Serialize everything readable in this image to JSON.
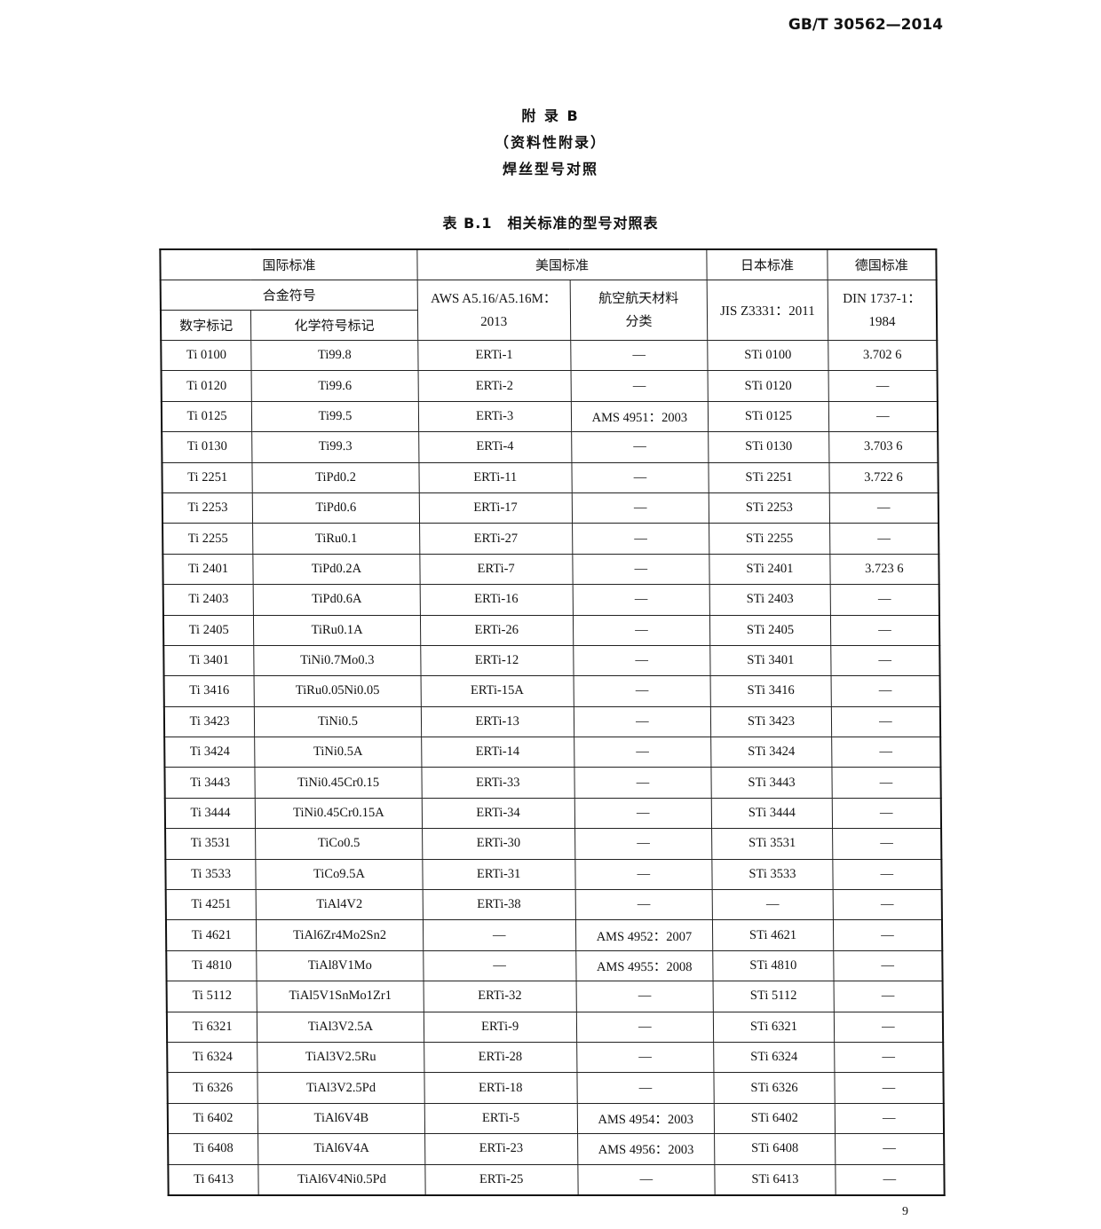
{
  "header": {
    "standard_no": "GB/T 30562—2014"
  },
  "title": {
    "appendix": "附 录 B",
    "type": "（资料性附录）",
    "subject": "焊丝型号对照",
    "table_caption": "表 B.1　相关标准的型号对照表"
  },
  "table": {
    "group_headers": {
      "international": "国际标准",
      "us": "美国标准",
      "japan": "日本标准",
      "germany": "德国标准"
    },
    "sub_headers": {
      "alloy_symbol": "合金符号",
      "aws": "AWS A5.16/A5.16M：2013",
      "aerospace": "航空航天材料分类",
      "jis": "JIS Z3331：2011",
      "din": "DIN 1737-1：1984",
      "numeric": "数字标记",
      "chemical": "化学符号标记"
    },
    "rows": [
      [
        "Ti 0100",
        "Ti99.8",
        "ERTi-1",
        "—",
        "STi 0100",
        "3.702 6"
      ],
      [
        "Ti 0120",
        "Ti99.6",
        "ERTi-2",
        "—",
        "STi 0120",
        "—"
      ],
      [
        "Ti 0125",
        "Ti99.5",
        "ERTi-3",
        "AMS 4951：2003",
        "STi 0125",
        "—"
      ],
      [
        "Ti 0130",
        "Ti99.3",
        "ERTi-4",
        "—",
        "STi 0130",
        "3.703 6"
      ],
      [
        "Ti 2251",
        "TiPd0.2",
        "ERTi-11",
        "—",
        "STi 2251",
        "3.722 6"
      ],
      [
        "Ti 2253",
        "TiPd0.6",
        "ERTi-17",
        "—",
        "STi 2253",
        "—"
      ],
      [
        "Ti 2255",
        "TiRu0.1",
        "ERTi-27",
        "—",
        "STi 2255",
        "—"
      ],
      [
        "Ti 2401",
        "TiPd0.2A",
        "ERTi-7",
        "—",
        "STi 2401",
        "3.723 6"
      ],
      [
        "Ti 2403",
        "TiPd0.6A",
        "ERTi-16",
        "—",
        "STi 2403",
        "—"
      ],
      [
        "Ti 2405",
        "TiRu0.1A",
        "ERTi-26",
        "—",
        "STi 2405",
        "—"
      ],
      [
        "Ti 3401",
        "TiNi0.7Mo0.3",
        "ERTi-12",
        "—",
        "STi 3401",
        "—"
      ],
      [
        "Ti 3416",
        "TiRu0.05Ni0.05",
        "ERTi-15A",
        "—",
        "STi 3416",
        "—"
      ],
      [
        "Ti 3423",
        "TiNi0.5",
        "ERTi-13",
        "—",
        "STi 3423",
        "—"
      ],
      [
        "Ti 3424",
        "TiNi0.5A",
        "ERTi-14",
        "—",
        "STi 3424",
        "—"
      ],
      [
        "Ti 3443",
        "TiNi0.45Cr0.15",
        "ERTi-33",
        "—",
        "STi 3443",
        "—"
      ],
      [
        "Ti 3444",
        "TiNi0.45Cr0.15A",
        "ERTi-34",
        "—",
        "STi 3444",
        "—"
      ],
      [
        "Ti 3531",
        "TiCo0.5",
        "ERTi-30",
        "—",
        "STi 3531",
        "—"
      ],
      [
        "Ti 3533",
        "TiCo9.5A",
        "ERTi-31",
        "—",
        "STi 3533",
        "—"
      ],
      [
        "Ti 4251",
        "TiAl4V2",
        "ERTi-38",
        "—",
        "—",
        "—"
      ],
      [
        "Ti 4621",
        "TiAl6Zr4Mo2Sn2",
        "—",
        "AMS 4952：2007",
        "STi 4621",
        "—"
      ],
      [
        "Ti 4810",
        "TiAl8V1Mo",
        "—",
        "AMS 4955：2008",
        "STi 4810",
        "—"
      ],
      [
        "Ti 5112",
        "TiAl5V1SnMo1Zr1",
        "ERTi-32",
        "—",
        "STi 5112",
        "—"
      ],
      [
        "Ti 6321",
        "TiAl3V2.5A",
        "ERTi-9",
        "—",
        "STi 6321",
        "—"
      ],
      [
        "Ti 6324",
        "TiAl3V2.5Ru",
        "ERTi-28",
        "—",
        "STi 6324",
        "—"
      ],
      [
        "Ti 6326",
        "TiAl3V2.5Pd",
        "ERTi-18",
        "—",
        "STi 6326",
        "—"
      ],
      [
        "Ti 6402",
        "TiAl6V4B",
        "ERTi-5",
        "AMS 4954：2003",
        "STi 6402",
        "—"
      ],
      [
        "Ti 6408",
        "TiAl6V4A",
        "ERTi-23",
        "AMS 4956：2003",
        "STi 6408",
        "—"
      ],
      [
        "Ti 6413",
        "TiAl6V4Ni0.5Pd",
        "ERTi-25",
        "—",
        "STi 6413",
        "—"
      ]
    ]
  },
  "footer": {
    "page_number": "9"
  }
}
